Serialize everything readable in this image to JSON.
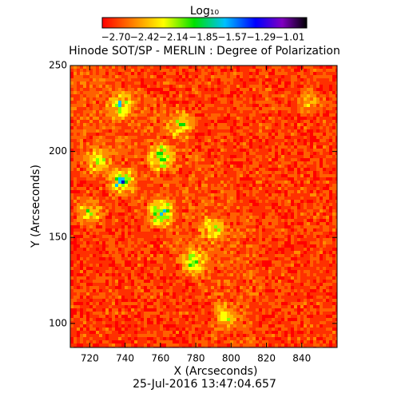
{
  "chart_data": {
    "type": "image",
    "title": "Hinode SOT/SP - MERLIN : Degree of Polarization",
    "colorbar_title": "Log₁₀",
    "clim": [
      -2.7,
      -1.01
    ],
    "cticks": [
      {
        "value": -2.7,
        "label": "−2.70"
      },
      {
        "value": -2.42,
        "label": "−2.42"
      },
      {
        "value": -2.14,
        "label": "−2.14"
      },
      {
        "value": -1.85,
        "label": "−1.85"
      },
      {
        "value": -1.57,
        "label": "−1.57"
      },
      {
        "value": -1.29,
        "label": "−1.29"
      },
      {
        "value": -1.01,
        "label": "−1.01"
      }
    ],
    "x_label": "X (Arcseconds)",
    "y_label": "Y (Arcseconds)",
    "xlim": [
      709,
      860
    ],
    "xticks": [
      720,
      740,
      760,
      780,
      800,
      820,
      840
    ],
    "ylim": [
      86,
      250
    ],
    "yticks": [
      100,
      150,
      200,
      250
    ],
    "footer": "25-Jul-2016 13:47:04.657"
  }
}
